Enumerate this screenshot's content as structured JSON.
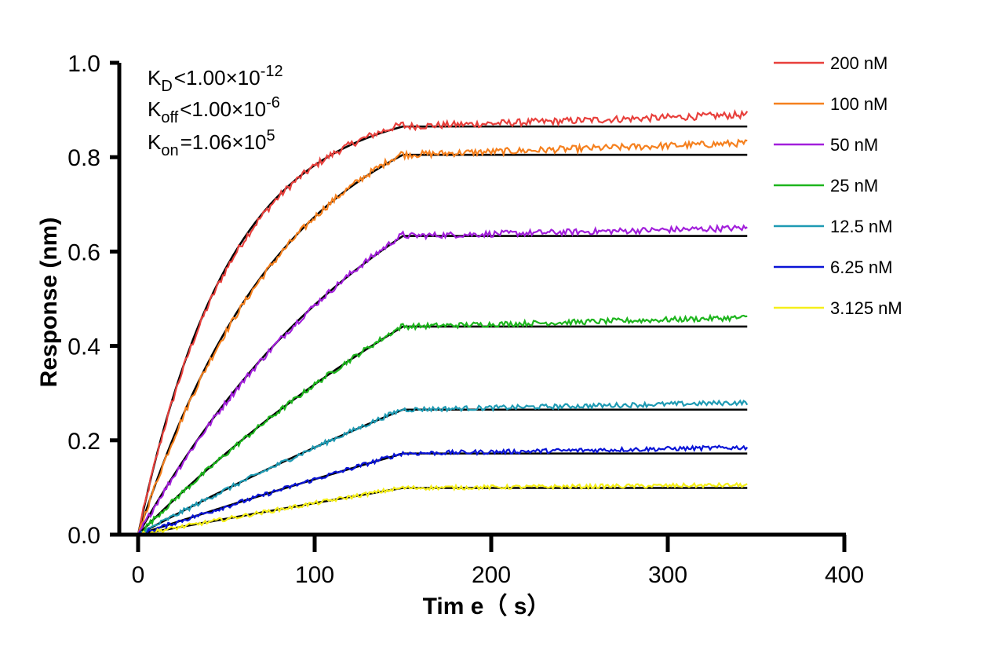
{
  "chart_data": {
    "type": "line",
    "xlabel": "Tim e（ s）",
    "ylabel": "Response (nm)",
    "xlim": [
      0,
      400
    ],
    "ylim": [
      0,
      1.0
    ],
    "xticks": [
      "0",
      "100",
      "200",
      "300",
      "400"
    ],
    "yticks": [
      "0.0",
      "0.2",
      "0.4",
      "0.6",
      "0.8",
      "1.0"
    ],
    "grid": false,
    "legend_position": "top-right",
    "association_end_s": 150,
    "dissociation_end_s": 345,
    "kinetics": [
      {
        "sym": "K",
        "sub": "D",
        "op": "<",
        "mant": "1.00×10",
        "exp": "-12"
      },
      {
        "sym": "K",
        "sub": "off",
        "op": "<",
        "mant": "1.00×10",
        "exp": "-6"
      },
      {
        "sym": "K",
        "sub": "on",
        "op": "=",
        "mant": "1.06×10",
        "exp": "5"
      }
    ],
    "series": [
      {
        "name": "200 nM",
        "color": "#e8403c",
        "plateau": 0.865,
        "obs": 0.01931,
        "end_value": 0.89
      },
      {
        "name": "100 nM",
        "color": "#f5801e",
        "plateau": 0.805,
        "obs": 0.01196,
        "end_value": 0.83
      },
      {
        "name": "50 nM",
        "color": "#a21fdb",
        "plateau": 0.633,
        "obs": 0.00662,
        "end_value": 0.65
      },
      {
        "name": "25 nM",
        "color": "#1db51d",
        "plateau": 0.441,
        "obs": 0.00345,
        "end_value": 0.46
      },
      {
        "name": "12.5 nM",
        "color": "#1e9ab3",
        "plateau": 0.265,
        "obs": 0.00186,
        "end_value": 0.28
      },
      {
        "name": "6.25 nM",
        "color": "#0a14d6",
        "plateau": 0.172,
        "obs": 0.00096,
        "end_value": 0.185
      },
      {
        "name": "3.125 nM",
        "color": "#f5ef1a",
        "plateau": 0.099,
        "obs": 0.00048,
        "end_value": 0.105
      }
    ],
    "fit_color": "#000000"
  }
}
